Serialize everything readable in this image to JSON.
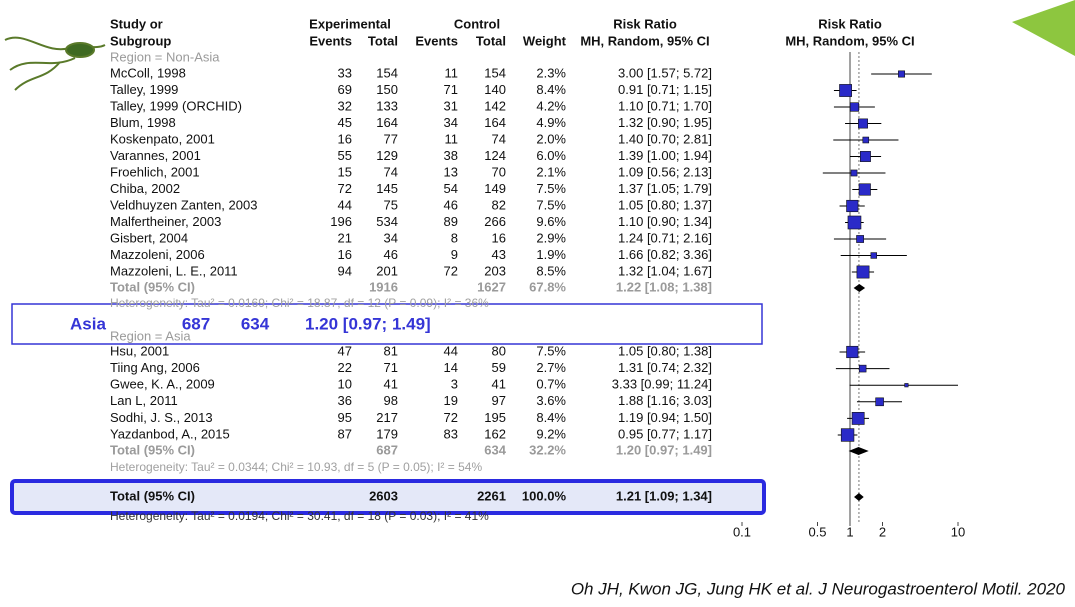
{
  "header": {
    "study": [
      "Study or",
      "Subgroup"
    ],
    "experimental": "Experimental",
    "control": "Control",
    "events": "Events",
    "total": "Total",
    "weight": "Weight",
    "rr_title": "Risk Ratio",
    "rr_method": "MH, Random, 95% CI",
    "plot_title": "Risk Ratio",
    "plot_method": "MH, Random, 95% CI"
  },
  "groups": [
    {
      "label": "Region = Non-Asia",
      "rows": [
        {
          "study": "McColl, 1998",
          "e_events": 33,
          "e_total": 154,
          "c_events": 11,
          "c_total": 154,
          "weight": {
            "value": 2.3,
            "label": "2.3%"
          },
          "ci": "3.00 [1.57; 5.72]",
          "rr": 3.0,
          "lo": 1.57,
          "hi": 5.72
        },
        {
          "study": "Talley, 1999",
          "e_events": 69,
          "e_total": 150,
          "c_events": 71,
          "c_total": 140,
          "weight": {
            "value": 8.4,
            "label": "8.4%"
          },
          "ci": "0.91 [0.71; 1.15]",
          "rr": 0.91,
          "lo": 0.71,
          "hi": 1.15
        },
        {
          "study": "Talley, 1999 (ORCHID)",
          "e_events": 32,
          "e_total": 133,
          "c_events": 31,
          "c_total": 142,
          "weight": {
            "value": 4.2,
            "label": "4.2%"
          },
          "ci": "1.10 [0.71; 1.70]",
          "rr": 1.1,
          "lo": 0.71,
          "hi": 1.7
        },
        {
          "study": "Blum, 1998",
          "e_events": 45,
          "e_total": 164,
          "c_events": 34,
          "c_total": 164,
          "weight": {
            "value": 4.9,
            "label": "4.9%"
          },
          "ci": "1.32 [0.90; 1.95]",
          "rr": 1.32,
          "lo": 0.9,
          "hi": 1.95
        },
        {
          "study": "Koskenpato, 2001",
          "e_events": 16,
          "e_total": 77,
          "c_events": 11,
          "c_total": 74,
          "weight": {
            "value": 2.0,
            "label": "2.0%"
          },
          "ci": "1.40 [0.70; 2.81]",
          "rr": 1.4,
          "lo": 0.7,
          "hi": 2.81
        },
        {
          "study": "Varannes, 2001",
          "e_events": 55,
          "e_total": 129,
          "c_events": 38,
          "c_total": 124,
          "weight": {
            "value": 6.0,
            "label": "6.0%"
          },
          "ci": "1.39 [1.00; 1.94]",
          "rr": 1.39,
          "lo": 1.0,
          "hi": 1.94
        },
        {
          "study": "Froehlich, 2001",
          "e_events": 15,
          "e_total": 74,
          "c_events": 13,
          "c_total": 70,
          "weight": {
            "value": 2.1,
            "label": "2.1%"
          },
          "ci": "1.09 [0.56; 2.13]",
          "rr": 1.09,
          "lo": 0.56,
          "hi": 2.13
        },
        {
          "study": "Chiba, 2002",
          "e_events": 72,
          "e_total": 145,
          "c_events": 54,
          "c_total": 149,
          "weight": {
            "value": 7.5,
            "label": "7.5%"
          },
          "ci": "1.37 [1.05; 1.79]",
          "rr": 1.37,
          "lo": 1.05,
          "hi": 1.79
        },
        {
          "study": "Veldhuyzen Zanten, 2003",
          "e_events": 44,
          "e_total": 75,
          "c_events": 46,
          "c_total": 82,
          "weight": {
            "value": 7.5,
            "label": "7.5%"
          },
          "ci": "1.05 [0.80; 1.37]",
          "rr": 1.05,
          "lo": 0.8,
          "hi": 1.37
        },
        {
          "study": "Malfertheiner, 2003",
          "e_events": 196,
          "e_total": 534,
          "c_events": 89,
          "c_total": 266,
          "weight": {
            "value": 9.6,
            "label": "9.6%"
          },
          "ci": "1.10 [0.90; 1.34]",
          "rr": 1.1,
          "lo": 0.9,
          "hi": 1.34
        },
        {
          "study": "Gisbert, 2004",
          "e_events": 21,
          "e_total": 34,
          "c_events": 8,
          "c_total": 16,
          "weight": {
            "value": 2.9,
            "label": "2.9%"
          },
          "ci": "1.24 [0.71; 2.16]",
          "rr": 1.24,
          "lo": 0.71,
          "hi": 2.16
        },
        {
          "study": "Mazzoleni, 2006",
          "e_events": 16,
          "e_total": 46,
          "c_events": 9,
          "c_total": 43,
          "weight": {
            "value": 1.9,
            "label": "1.9%"
          },
          "ci": "1.66 [0.82; 3.36]",
          "rr": 1.66,
          "lo": 0.82,
          "hi": 3.36
        },
        {
          "study": "Mazzoleni, L. E., 2011",
          "e_events": 94,
          "e_total": 201,
          "c_events": 72,
          "c_total": 203,
          "weight": {
            "value": 8.5,
            "label": "8.5%"
          },
          "ci": "1.32 [1.04; 1.67]",
          "rr": 1.32,
          "lo": 1.04,
          "hi": 1.67
        }
      ],
      "total": {
        "label": "Total (95% CI)",
        "e_total": 1916,
        "c_total": 1627,
        "weight": {
          "value": 67.8,
          "label": "67.8%"
        },
        "ci": "1.22 [1.08; 1.38]",
        "rr": 1.22,
        "lo": 1.08,
        "hi": 1.38
      },
      "heterogeneity": "Heterogeneity: Tau² = 0.0169; Chi² = 18.87, df = 12 (P = 0.09); I² = 36%"
    },
    {
      "label": "Region = Asia",
      "rows": [
        {
          "study": "Hsu, 2001",
          "e_events": 47,
          "e_total": 81,
          "c_events": 44,
          "c_total": 80,
          "weight": {
            "value": 7.5,
            "label": "7.5%"
          },
          "ci": "1.05 [0.80; 1.38]",
          "rr": 1.05,
          "lo": 0.8,
          "hi": 1.38
        },
        {
          "study": "Tiing Ang, 2006",
          "e_events": 22,
          "e_total": 71,
          "c_events": 14,
          "c_total": 59,
          "weight": {
            "value": 2.7,
            "label": "2.7%"
          },
          "ci": "1.31 [0.74; 2.32]",
          "rr": 1.31,
          "lo": 0.74,
          "hi": 2.32
        },
        {
          "study": "Gwee, K. A., 2009",
          "e_events": 10,
          "e_total": 41,
          "c_events": 3,
          "c_total": 41,
          "weight": {
            "value": 0.7,
            "label": "0.7%"
          },
          "ci": "3.33 [0.99; 11.24]",
          "rr": 3.33,
          "lo": 0.99,
          "hi": 11.24
        },
        {
          "study": "Lan L, 2011",
          "e_events": 36,
          "e_total": 98,
          "c_events": 19,
          "c_total": 97,
          "weight": {
            "value": 3.6,
            "label": "3.6%"
          },
          "ci": "1.88 [1.16; 3.03]",
          "rr": 1.88,
          "lo": 1.16,
          "hi": 3.03
        },
        {
          "study": "Sodhi, J. S., 2013",
          "e_events": 95,
          "e_total": 217,
          "c_events": 72,
          "c_total": 195,
          "weight": {
            "value": 8.4,
            "label": "8.4%"
          },
          "ci": "1.19 [0.94; 1.50]",
          "rr": 1.19,
          "lo": 0.94,
          "hi": 1.5
        },
        {
          "study": "Yazdanbod, A., 2015",
          "e_events": 87,
          "e_total": 179,
          "c_events": 83,
          "c_total": 162,
          "weight": {
            "value": 9.2,
            "label": "9.2%"
          },
          "ci": "0.95 [0.77; 1.17]",
          "rr": 0.95,
          "lo": 0.77,
          "hi": 1.17
        }
      ],
      "total": {
        "label": "Total (95% CI)",
        "e_total": 687,
        "c_total": 634,
        "weight": {
          "value": 32.2,
          "label": "32.2%"
        },
        "ci": "1.20 [0.97; 1.49]",
        "rr": 1.2,
        "lo": 0.97,
        "hi": 1.49
      },
      "heterogeneity": "Heterogeneity: Tau² = 0.0344; Chi² = 10.93, df = 5 (P = 0.05); I² = 54%"
    }
  ],
  "overall": {
    "label": "Total (95% CI)",
    "e_total": 2603,
    "c_total": 2261,
    "weight": {
      "value": 100.0,
      "label": "100.0%"
    },
    "ci": "1.21 [1.09; 1.34]",
    "rr": 1.21,
    "lo": 1.09,
    "hi": 1.34,
    "heterogeneity": "Heterogeneity: Tau² = 0.0194; Chi² = 30.41, df = 18 (P = 0.03); I² = 41%"
  },
  "axis": {
    "log": true,
    "xlim": [
      0.1,
      10
    ],
    "xticks": [
      0.1,
      0.5,
      1,
      2,
      10
    ]
  },
  "callout": {
    "label": "Asia",
    "e_total": 687,
    "c_total": 634,
    "ci": "1.20 [0.97; 1.49]"
  },
  "citation": "Oh JH, Kwon JG, Jung HK et al. J Neurogastroenterol Motil. 2020"
}
